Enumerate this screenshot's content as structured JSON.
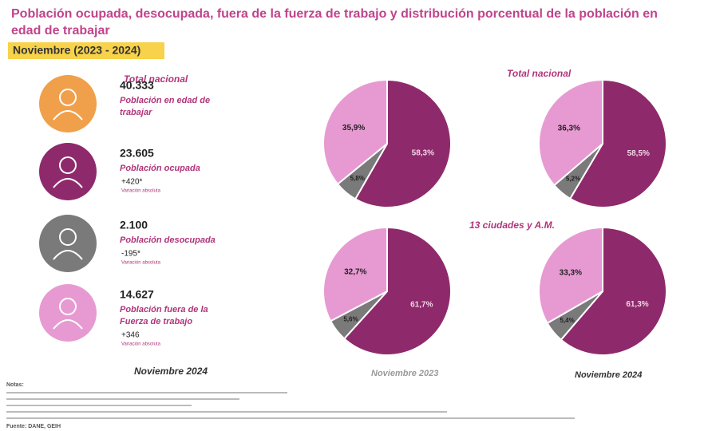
{
  "header": {
    "title_line1": "Población ocupada, desocupada, fuera de la fuerza de trabajo y distribución porcentual de la población en",
    "title_line2": "edad de trabajar",
    "subtitle": "Noviembre (2023 - 2024)"
  },
  "summary": {
    "heading": "Total nacional",
    "period": "Noviembre 2024",
    "items": [
      {
        "number": "40.333",
        "label_lines": [
          "Población en edad de",
          "trabajar"
        ],
        "color": "#f0a04b"
      },
      {
        "number": "23.605",
        "label_lines": [
          "Población ocupada"
        ],
        "change": "+420*",
        "change_label": "Variación absoluta",
        "color": "#8e2a6b"
      },
      {
        "number": "2.100",
        "label_lines": [
          "Población desocupada"
        ],
        "change": "-195*",
        "change_label": "Variación absoluta",
        "color": "#7a7a7a"
      },
      {
        "number": "14.627",
        "label_lines": [
          "Población fuera de la",
          "Fuerza de trabajo"
        ],
        "change": "+346",
        "change_label": "Variación absoluta",
        "color": "#e79ad2"
      }
    ]
  },
  "pie_rows": [
    "Total nacional",
    "13 ciudades y A.M."
  ],
  "pie_columns": [
    "Noviembre 2023",
    "Noviembre 2024"
  ],
  "chart_data": [
    {
      "type": "pie",
      "values": [
        58.3,
        5.8,
        35.9
      ],
      "value_labels": [
        "58,3%",
        "5,8%",
        "35,9%"
      ],
      "colors": [
        "#8e2a6b",
        "#7a7a7a",
        "#e79ad2"
      ]
    },
    {
      "type": "pie",
      "values": [
        58.5,
        5.2,
        36.3
      ],
      "value_labels": [
        "58,5%",
        "5,2%",
        "36,3%"
      ],
      "colors": [
        "#8e2a6b",
        "#7a7a7a",
        "#e79ad2"
      ]
    },
    {
      "type": "pie",
      "values": [
        61.7,
        5.6,
        32.7
      ],
      "value_labels": [
        "61,7%",
        "5,6%",
        "32,7%"
      ],
      "colors": [
        "#8e2a6b",
        "#7a7a7a",
        "#e79ad2"
      ]
    },
    {
      "type": "pie",
      "values": [
        61.3,
        5.4,
        33.3
      ],
      "value_labels": [
        "61,3%",
        "5,4%",
        "33,3%"
      ],
      "colors": [
        "#8e2a6b",
        "#7a7a7a",
        "#e79ad2"
      ]
    }
  ],
  "footer": {
    "note_heading": "Notas:",
    "source": "Fuente: DANE, GEIH"
  }
}
